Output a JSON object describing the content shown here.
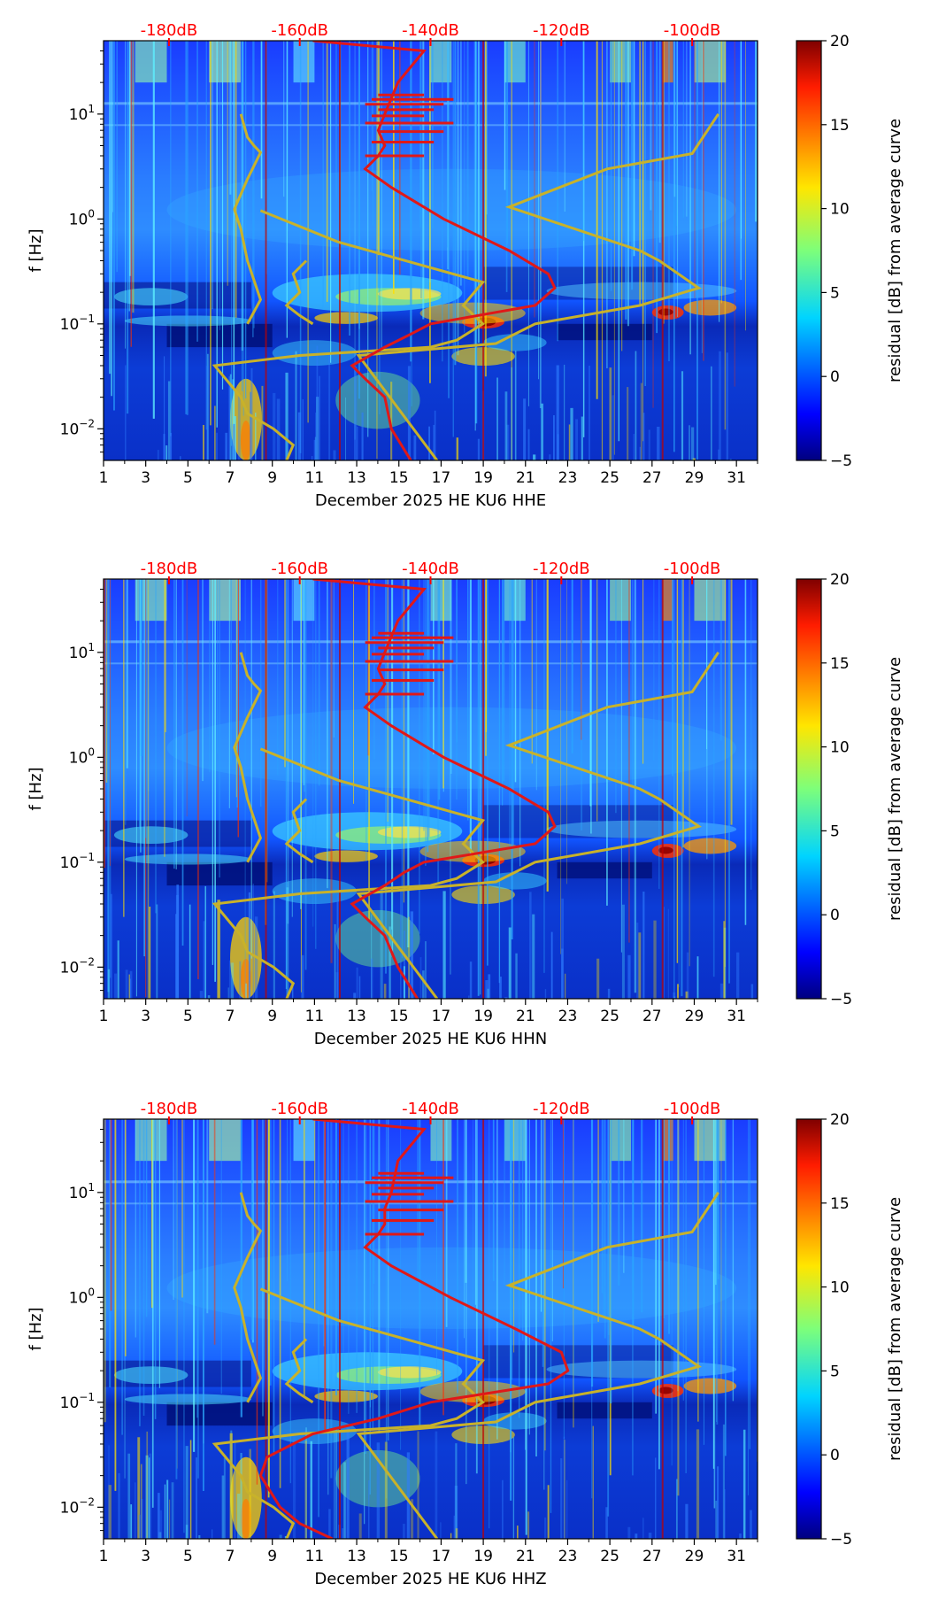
{
  "common": {
    "x_ticks": [
      1,
      3,
      5,
      7,
      9,
      11,
      13,
      15,
      17,
      19,
      21,
      23,
      25,
      27,
      29,
      31
    ],
    "x_range": [
      1,
      32
    ],
    "y_range": [
      0.005,
      50
    ],
    "y_ticks": [
      {
        "value": 0.01,
        "base": "10",
        "exp": "−2"
      },
      {
        "value": 0.1,
        "base": "10",
        "exp": "−1"
      },
      {
        "value": 1,
        "base": "10",
        "exp": "0"
      },
      {
        "value": 10,
        "base": "10",
        "exp": "1"
      }
    ],
    "db_ticks": [
      {
        "value": -180,
        "label": "-180dB"
      },
      {
        "value": -160,
        "label": "-160dB"
      },
      {
        "value": -140,
        "label": "-140dB"
      },
      {
        "value": -120,
        "label": "-120dB"
      },
      {
        "value": -100,
        "label": "-100dB"
      }
    ],
    "db_range": [
      -190,
      -90
    ],
    "cbar_ticks": [
      "20",
      "15",
      "10",
      "5",
      "0",
      "−5"
    ],
    "cbar_label": "residual [dB] from average curve",
    "cbar_range": [
      -5,
      20
    ],
    "ylabel": "f [Hz]",
    "colors": {
      "nlnm_nhnm": "#c8b22a",
      "psd_curve": "#e01818",
      "db_text": "#ff0000"
    }
  },
  "noise_model_segments": [
    [
      [
        0.1,
        -168
      ],
      [
        0.17,
        -166
      ],
      [
        0.4,
        -168
      ],
      [
        0.8,
        -169
      ],
      [
        1.24,
        -170
      ],
      [
        2.4,
        -168
      ],
      [
        4.3,
        -166
      ],
      [
        5,
        -167
      ],
      [
        6,
        -168
      ],
      [
        10,
        -169
      ]
    ],
    [
      [
        0.005,
        -162
      ],
      [
        0.007,
        -161
      ],
      [
        0.01,
        -164
      ],
      [
        0.014,
        -168
      ],
      [
        0.02,
        -169
      ],
      [
        0.04,
        -173
      ],
      [
        0.05,
        -160
      ],
      [
        0.06,
        -140
      ],
      [
        0.07,
        -136
      ],
      [
        0.1,
        -132
      ],
      [
        0.15,
        -135
      ],
      [
        0.25,
        -132
      ],
      [
        0.6,
        -154
      ],
      [
        1.2,
        -166
      ]
    ],
    [
      [
        0.1,
        -158
      ],
      [
        0.12,
        -160
      ],
      [
        0.15,
        -162
      ],
      [
        0.2,
        -160
      ],
      [
        0.3,
        -161
      ],
      [
        0.4,
        -159
      ]
    ],
    [
      [
        0.005,
        -139
      ],
      [
        0.05,
        -151
      ],
      [
        0.065,
        -130
      ],
      [
        0.1,
        -124
      ],
      [
        0.15,
        -108
      ],
      [
        0.22,
        -99
      ],
      [
        0.4,
        -105
      ],
      [
        0.5,
        -108
      ],
      [
        1.3,
        -128
      ],
      [
        3,
        -113
      ],
      [
        4.2,
        -100
      ],
      [
        10,
        -96
      ]
    ]
  ],
  "chart_data": [
    {
      "type": "heatmap",
      "title": "",
      "xlabel": "December 2025 HE KU6  HHE",
      "channel": "HHE",
      "ylabel": "f [Hz]",
      "xlim": [
        1,
        32
      ],
      "ylim": [
        0.005,
        50
      ],
      "yscale": "log",
      "color_range": [
        -5,
        20
      ],
      "colorbar_label": "residual [dB] from average curve",
      "psd_curve_db": [
        [
          50,
          -158
        ],
        [
          40,
          -141
        ],
        [
          20,
          -145
        ],
        [
          10,
          -147
        ],
        [
          7,
          -148
        ],
        [
          5,
          -147
        ],
        [
          4,
          -148
        ],
        [
          3,
          -150
        ],
        [
          2,
          -146
        ],
        [
          1,
          -138
        ],
        [
          0.5,
          -128
        ],
        [
          0.3,
          -122
        ],
        [
          0.22,
          -121
        ],
        [
          0.15,
          -124
        ],
        [
          0.1,
          -140
        ],
        [
          0.08,
          -143
        ],
        [
          0.06,
          -147
        ],
        [
          0.04,
          -152
        ],
        [
          0.03,
          -150
        ],
        [
          0.02,
          -147
        ],
        [
          0.01,
          -146
        ],
        [
          0.005,
          -143
        ]
      ]
    },
    {
      "type": "heatmap",
      "title": "",
      "xlabel": "December 2025 HE KU6  HHN",
      "channel": "HHN",
      "ylabel": "f [Hz]",
      "xlim": [
        1,
        32
      ],
      "ylim": [
        0.005,
        50
      ],
      "yscale": "log",
      "color_range": [
        -5,
        20
      ],
      "colorbar_label": "residual [dB] from average curve",
      "psd_curve_db": [
        [
          50,
          -158
        ],
        [
          40,
          -141
        ],
        [
          20,
          -145
        ],
        [
          10,
          -147
        ],
        [
          7,
          -148
        ],
        [
          5,
          -147
        ],
        [
          4,
          -148
        ],
        [
          3,
          -150
        ],
        [
          2,
          -146
        ],
        [
          1,
          -138
        ],
        [
          0.5,
          -128
        ],
        [
          0.3,
          -122
        ],
        [
          0.22,
          -121
        ],
        [
          0.15,
          -124
        ],
        [
          0.1,
          -141
        ],
        [
          0.08,
          -144
        ],
        [
          0.06,
          -147
        ],
        [
          0.04,
          -152
        ],
        [
          0.03,
          -150
        ],
        [
          0.02,
          -147
        ],
        [
          0.01,
          -145
        ],
        [
          0.005,
          -142
        ]
      ]
    },
    {
      "type": "heatmap",
      "title": "",
      "xlabel": "December 2025 HE KU6  HHZ",
      "channel": "HHZ",
      "ylabel": "f [Hz]",
      "xlim": [
        1,
        32
      ],
      "ylim": [
        0.005,
        50
      ],
      "yscale": "log",
      "color_range": [
        -5,
        20
      ],
      "colorbar_label": "residual [dB] from average curve",
      "psd_curve_db": [
        [
          50,
          -158
        ],
        [
          40,
          -141
        ],
        [
          20,
          -145
        ],
        [
          10,
          -146
        ],
        [
          7,
          -147
        ],
        [
          5,
          -147
        ],
        [
          4,
          -148
        ],
        [
          3,
          -150
        ],
        [
          2,
          -146
        ],
        [
          1,
          -137
        ],
        [
          0.5,
          -127
        ],
        [
          0.3,
          -120
        ],
        [
          0.2,
          -119
        ],
        [
          0.15,
          -122
        ],
        [
          0.1,
          -140
        ],
        [
          0.07,
          -148
        ],
        [
          0.05,
          -158
        ],
        [
          0.03,
          -165
        ],
        [
          0.02,
          -166
        ],
        [
          0.01,
          -163
        ],
        [
          0.007,
          -160
        ],
        [
          0.005,
          -155
        ]
      ]
    }
  ]
}
